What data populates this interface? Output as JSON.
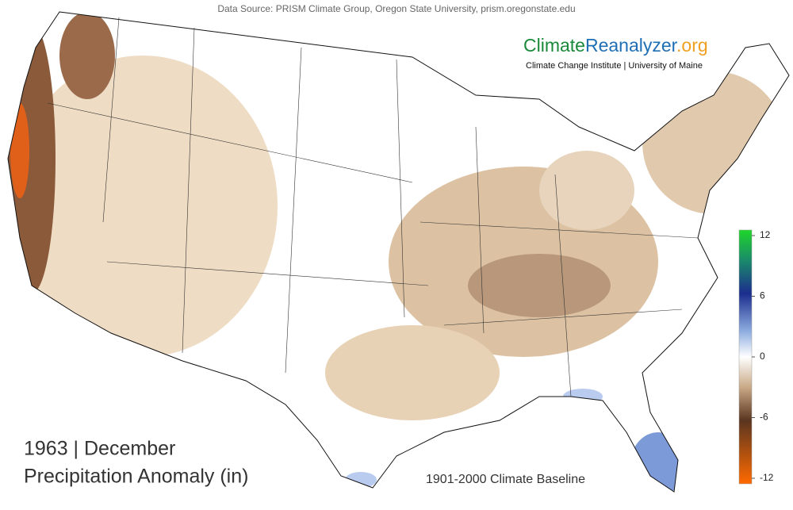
{
  "header": {
    "source": "Data Source: PRISM Climate Group, Oregon State University, prism.oregonstate.edu"
  },
  "logo": {
    "climate": "Climate",
    "reanalyzer": "Reanalyzer",
    "org": ".org",
    "tagline": "Climate Change Institute | University of Maine"
  },
  "labels": {
    "period": "1963 | December",
    "variable": "Precipitation Anomaly (in)",
    "baseline": "1901-2000 Climate Baseline"
  },
  "colorbar": {
    "lim": [
      -12,
      12
    ],
    "ticks": [
      12,
      6,
      0,
      -6,
      -12
    ]
  }
}
